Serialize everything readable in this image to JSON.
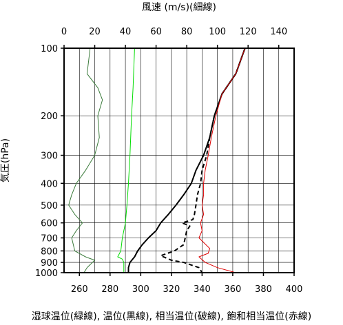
{
  "chart_data": {
    "type": "line",
    "top_axis_title": "風速 (m/s)(細線)",
    "y_axis_title": "気圧(hPa)",
    "bottom_axis_title": "湿球温位(緑線), 温位(黒線), 相当温位(破線), 飽和相当温位(赤線)",
    "y_scale": "log",
    "ylim": [
      1000,
      100
    ],
    "y_ticks": [
      100,
      200,
      300,
      400,
      500,
      600,
      700,
      800,
      900,
      1000
    ],
    "x_bottom_lim": [
      250,
      400
    ],
    "x_bottom_ticks": [
      260,
      280,
      300,
      320,
      340,
      360,
      380,
      400
    ],
    "x_top_lim": [
      0,
      150
    ],
    "x_top_ticks": [
      0,
      20,
      40,
      60,
      80,
      100,
      120,
      140
    ],
    "grid": true,
    "colors": {
      "wet_bulb_potential_temperature": "#00dd00",
      "potential_temperature": "#000000",
      "equivalent_potential_temperature": "#000000",
      "saturated_equivalent_potential_temperature": "#dd0000",
      "wind_speed": "#3a7a3a"
    },
    "series": [
      {
        "key": "wet_bulb",
        "axis": "bottom",
        "style": "solid-thin",
        "points": [
          [
            296,
            100
          ],
          [
            295,
            150
          ],
          [
            294,
            200
          ],
          [
            293,
            300
          ],
          [
            292,
            400
          ],
          [
            291,
            500
          ],
          [
            290,
            600
          ],
          [
            288,
            700
          ],
          [
            287,
            800
          ],
          [
            285,
            850
          ],
          [
            288,
            870
          ],
          [
            289,
            900
          ],
          [
            289,
            950
          ],
          [
            289,
            1000
          ]
        ]
      },
      {
        "key": "potential_temperature",
        "axis": "bottom",
        "style": "solid-thick",
        "points": [
          [
            368,
            100
          ],
          [
            362,
            130
          ],
          [
            353,
            160
          ],
          [
            348,
            200
          ],
          [
            345,
            250
          ],
          [
            341,
            300
          ],
          [
            336,
            350
          ],
          [
            333,
            400
          ],
          [
            328,
            450
          ],
          [
            323,
            500
          ],
          [
            318,
            550
          ],
          [
            313,
            600
          ],
          [
            310,
            650
          ],
          [
            305,
            700
          ],
          [
            301,
            750
          ],
          [
            298,
            800
          ],
          [
            296,
            850
          ],
          [
            293,
            900
          ],
          [
            292,
            950
          ],
          [
            292,
            1000
          ]
        ]
      },
      {
        "key": "equivalent_potential_temperature",
        "axis": "bottom",
        "style": "dashed",
        "points": [
          [
            368,
            100
          ],
          [
            362,
            130
          ],
          [
            353,
            160
          ],
          [
            348,
            200
          ],
          [
            345,
            250
          ],
          [
            343,
            300
          ],
          [
            340,
            350
          ],
          [
            339,
            400
          ],
          [
            337,
            450
          ],
          [
            336,
            500
          ],
          [
            335,
            550
          ],
          [
            334,
            580
          ],
          [
            327,
            600
          ],
          [
            332,
            620
          ],
          [
            330,
            650
          ],
          [
            329,
            700
          ],
          [
            328,
            750
          ],
          [
            322,
            800
          ],
          [
            313,
            840
          ],
          [
            320,
            880
          ],
          [
            328,
            900
          ],
          [
            338,
            950
          ],
          [
            340,
            1000
          ]
        ]
      },
      {
        "key": "saturated_equivalent_potential_temperature",
        "axis": "bottom",
        "style": "solid-thin",
        "points": [
          [
            368,
            100
          ],
          [
            362,
            130
          ],
          [
            353,
            160
          ],
          [
            349,
            200
          ],
          [
            346,
            250
          ],
          [
            344,
            300
          ],
          [
            342,
            350
          ],
          [
            341,
            400
          ],
          [
            341,
            450
          ],
          [
            340,
            500
          ],
          [
            341,
            550
          ],
          [
            339,
            600
          ],
          [
            340,
            650
          ],
          [
            338,
            700
          ],
          [
            345,
            780
          ],
          [
            344,
            820
          ],
          [
            338,
            850
          ],
          [
            342,
            900
          ],
          [
            350,
            950
          ],
          [
            362,
            1000
          ]
        ]
      },
      {
        "key": "wind_speed",
        "axis": "top",
        "style": "solid-thin",
        "points": [
          [
            17,
            100
          ],
          [
            15,
            130
          ],
          [
            22,
            150
          ],
          [
            25,
            170
          ],
          [
            22,
            200
          ],
          [
            23,
            250
          ],
          [
            20,
            300
          ],
          [
            14,
            350
          ],
          [
            8,
            400
          ],
          [
            5,
            450
          ],
          [
            3,
            500
          ],
          [
            7,
            550
          ],
          [
            12,
            600
          ],
          [
            8,
            650
          ],
          [
            5,
            700
          ],
          [
            7,
            800
          ],
          [
            14,
            850
          ],
          [
            20,
            880
          ],
          [
            15,
            950
          ],
          [
            13,
            1000
          ]
        ]
      }
    ]
  }
}
